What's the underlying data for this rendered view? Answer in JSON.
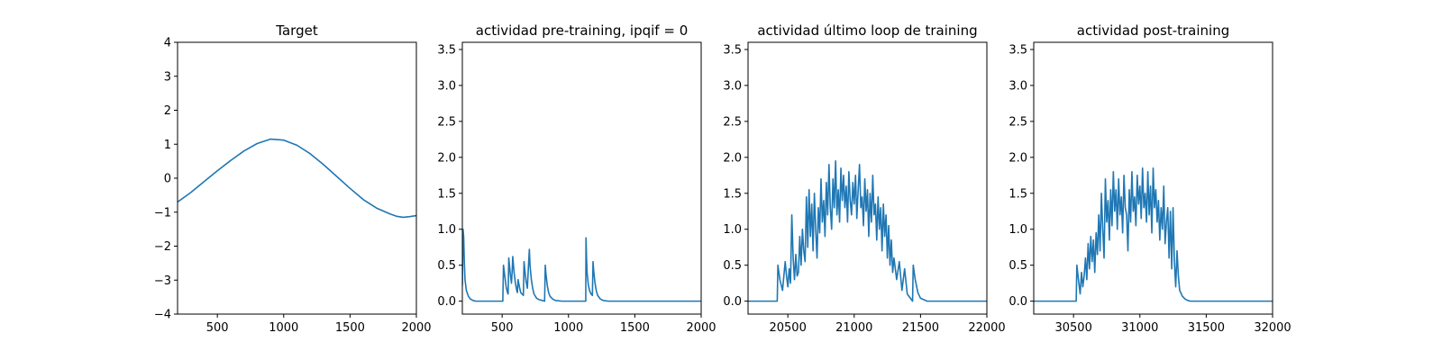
{
  "chart_data": [
    {
      "type": "line",
      "title": "Target",
      "xlim": [
        200,
        2000
      ],
      "ylim": [
        -4,
        4
      ],
      "xticks": [
        500,
        1000,
        1500,
        2000
      ],
      "yticks": [
        -4,
        -3,
        -2,
        -1,
        0,
        1,
        2,
        3,
        4
      ],
      "grid": false,
      "series": [
        {
          "color": "#1f77b4",
          "x": [
            200,
            300,
            400,
            500,
            600,
            700,
            800,
            900,
            1000,
            1100,
            1200,
            1300,
            1400,
            1500,
            1600,
            1700,
            1800,
            1850,
            1900,
            1950,
            2000
          ],
          "y": [
            -0.7,
            -0.42,
            -0.1,
            0.22,
            0.52,
            0.8,
            1.02,
            1.15,
            1.12,
            0.97,
            0.72,
            0.4,
            0.05,
            -0.3,
            -0.63,
            -0.88,
            -1.05,
            -1.12,
            -1.15,
            -1.13,
            -1.1
          ]
        }
      ]
    },
    {
      "type": "line",
      "title": "actividad pre-training, ipqif = 0",
      "xlim": [
        200,
        2000
      ],
      "ylim": [
        -0.18,
        3.6
      ],
      "xticks": [
        500,
        1000,
        1500,
        2000
      ],
      "yticks": [
        0.0,
        0.5,
        1.0,
        1.5,
        2.0,
        2.5,
        3.0,
        3.5
      ],
      "grid": false,
      "series": [
        {
          "color": "#1f77b4",
          "x": [
            200,
            205,
            210,
            215,
            220,
            230,
            245,
            260,
            280,
            300,
            340,
            400,
            450,
            500,
            505,
            510,
            520,
            530,
            540,
            545,
            550,
            560,
            570,
            575,
            580,
            590,
            600,
            610,
            615,
            620,
            630,
            640,
            660,
            665,
            670,
            680,
            690,
            700,
            705,
            710,
            720,
            730,
            740,
            760,
            780,
            800,
            820,
            825,
            830,
            840,
            850,
            860,
            880,
            900,
            950,
            1000,
            1050,
            1100,
            1130,
            1132,
            1136,
            1140,
            1150,
            1160,
            1170,
            1180,
            1185,
            1190,
            1200,
            1210,
            1220,
            1240,
            1260,
            1300,
            1350,
            1400,
            1500,
            1600,
            1700,
            1800,
            1900,
            2000
          ],
          "y": [
            0.22,
            1.0,
            0.9,
            0.55,
            0.3,
            0.15,
            0.07,
            0.03,
            0.01,
            0.0,
            0.0,
            0.0,
            0.0,
            0.0,
            0.0,
            0.5,
            0.35,
            0.2,
            0.12,
            0.1,
            0.6,
            0.4,
            0.25,
            0.4,
            0.62,
            0.4,
            0.25,
            0.15,
            0.12,
            0.3,
            0.2,
            0.12,
            0.08,
            0.55,
            0.45,
            0.28,
            0.18,
            0.55,
            0.72,
            0.5,
            0.3,
            0.18,
            0.1,
            0.04,
            0.02,
            0.01,
            0.0,
            0.5,
            0.38,
            0.22,
            0.12,
            0.07,
            0.03,
            0.01,
            0.0,
            0.0,
            0.0,
            0.0,
            0.0,
            0.88,
            0.6,
            0.4,
            0.22,
            0.14,
            0.1,
            0.08,
            0.55,
            0.42,
            0.25,
            0.14,
            0.08,
            0.03,
            0.01,
            0.0,
            0.0,
            0.0,
            0.0,
            0.0,
            0.0,
            0.0,
            0.0,
            0.0
          ]
        }
      ]
    },
    {
      "type": "line",
      "title": "actividad último loop de training",
      "xlim": [
        20200,
        22000
      ],
      "ylim": [
        -0.18,
        3.6
      ],
      "xticks": [
        20500,
        21000,
        21500,
        22000
      ],
      "yticks": [
        0.0,
        0.5,
        1.0,
        1.5,
        2.0,
        2.5,
        3.0,
        3.5
      ],
      "grid": false,
      "series": [
        {
          "color": "#1f77b4",
          "x": [
            20200,
            20300,
            20420,
            20425,
            20440,
            20460,
            20480,
            20490,
            20500,
            20510,
            20520,
            20530,
            20540,
            20550,
            20560,
            20570,
            20580,
            20590,
            20600,
            20610,
            20620,
            20630,
            20640,
            20650,
            20660,
            20670,
            20680,
            20690,
            20700,
            20710,
            20720,
            20730,
            20740,
            20750,
            20760,
            20770,
            20780,
            20790,
            20800,
            20810,
            20820,
            20830,
            20840,
            20850,
            20860,
            20870,
            20880,
            20890,
            20900,
            20910,
            20920,
            20930,
            20940,
            20950,
            20960,
            20970,
            20980,
            20990,
            21000,
            21010,
            21020,
            21030,
            21040,
            21050,
            21060,
            21070,
            21080,
            21090,
            21100,
            21110,
            21120,
            21130,
            21140,
            21150,
            21160,
            21170,
            21180,
            21190,
            21200,
            21210,
            21220,
            21230,
            21240,
            21250,
            21260,
            21270,
            21280,
            21290,
            21300,
            21320,
            21340,
            21360,
            21380,
            21400,
            21420,
            21440,
            21445,
            21460,
            21480,
            21500,
            21550,
            21600,
            21700,
            21800,
            22000
          ],
          "y": [
            0.0,
            0.0,
            0.0,
            0.5,
            0.3,
            0.15,
            0.55,
            0.35,
            0.2,
            0.45,
            0.25,
            1.2,
            0.6,
            0.3,
            0.65,
            0.35,
            0.4,
            0.9,
            0.5,
            1.0,
            0.7,
            0.55,
            1.45,
            0.75,
            1.55,
            0.9,
            1.35,
            0.7,
            1.5,
            1.0,
            0.6,
            1.3,
            0.95,
            1.7,
            1.1,
            1.4,
            0.9,
            1.65,
            1.2,
            1.9,
            1.3,
            1.0,
            1.7,
            1.3,
            1.95,
            1.2,
            1.55,
            1.1,
            1.85,
            1.4,
            1.75,
            1.3,
            1.6,
            1.1,
            1.8,
            1.4,
            1.2,
            1.65,
            1.35,
            1.75,
            1.15,
            1.55,
            1.9,
            1.3,
            1.45,
            1.05,
            1.7,
            1.25,
            1.55,
            0.9,
            1.5,
            1.1,
            1.75,
            1.2,
            1.35,
            0.85,
            1.45,
            1.0,
            1.3,
            0.7,
            1.35,
            0.9,
            1.2,
            0.6,
            1.05,
            0.5,
            0.85,
            0.4,
            0.6,
            0.3,
            0.55,
            0.15,
            0.45,
            0.1,
            0.05,
            0.0,
            0.5,
            0.3,
            0.12,
            0.04,
            0.0,
            0.0,
            0.0,
            0.0,
            0.0
          ]
        }
      ]
    },
    {
      "type": "line",
      "title": "actividad post-training",
      "xlim": [
        30200,
        32000
      ],
      "ylim": [
        -0.18,
        3.6
      ],
      "xticks": [
        30500,
        31000,
        31500,
        32000
      ],
      "yticks": [
        0.0,
        0.5,
        1.0,
        1.5,
        2.0,
        2.5,
        3.0,
        3.5
      ],
      "grid": false,
      "series": [
        {
          "color": "#1f77b4",
          "x": [
            30200,
            30300,
            30520,
            30525,
            30540,
            30550,
            30560,
            30570,
            30580,
            30590,
            30600,
            30610,
            30620,
            30630,
            30640,
            30650,
            30660,
            30670,
            30680,
            30690,
            30700,
            30710,
            30720,
            30730,
            30740,
            30750,
            30760,
            30770,
            30780,
            30790,
            30800,
            30810,
            30820,
            30830,
            30840,
            30850,
            30860,
            30870,
            30880,
            30890,
            30900,
            30910,
            30920,
            30930,
            30940,
            30950,
            30960,
            30970,
            30980,
            30990,
            31000,
            31010,
            31020,
            31030,
            31040,
            31050,
            31060,
            31070,
            31080,
            31090,
            31100,
            31110,
            31120,
            31130,
            31140,
            31150,
            31160,
            31170,
            31180,
            31190,
            31200,
            31210,
            31220,
            31230,
            31240,
            31250,
            31260,
            31270,
            31280,
            31290,
            31300,
            31320,
            31340,
            31360,
            31380,
            31400,
            31450,
            31500,
            31600,
            31800,
            32000
          ],
          "y": [
            0.0,
            0.0,
            0.0,
            0.5,
            0.25,
            0.1,
            0.4,
            0.2,
            0.35,
            0.6,
            0.3,
            0.8,
            0.45,
            0.9,
            0.55,
            0.85,
            0.4,
            0.95,
            0.65,
            1.2,
            0.7,
            1.5,
            1.0,
            0.6,
            1.7,
            1.1,
            1.4,
            0.85,
            1.55,
            1.05,
            1.8,
            1.25,
            1.55,
            1.0,
            1.7,
            1.2,
            1.45,
            0.95,
            1.75,
            1.3,
            1.2,
            0.7,
            1.55,
            1.1,
            1.8,
            1.25,
            1.45,
            1.05,
            1.75,
            1.35,
            1.6,
            1.15,
            1.85,
            1.3,
            1.5,
            1.1,
            1.8,
            1.2,
            1.6,
            0.95,
            1.85,
            1.3,
            1.55,
            1.1,
            1.4,
            0.85,
            1.3,
            1.0,
            1.6,
            0.8,
            1.1,
            1.3,
            0.6,
            1.25,
            0.45,
            1.3,
            0.55,
            0.2,
            0.7,
            0.35,
            0.15,
            0.07,
            0.03,
            0.01,
            0.0,
            0.0,
            0.0,
            0.0,
            0.0,
            0.0,
            0.0
          ]
        }
      ]
    }
  ]
}
